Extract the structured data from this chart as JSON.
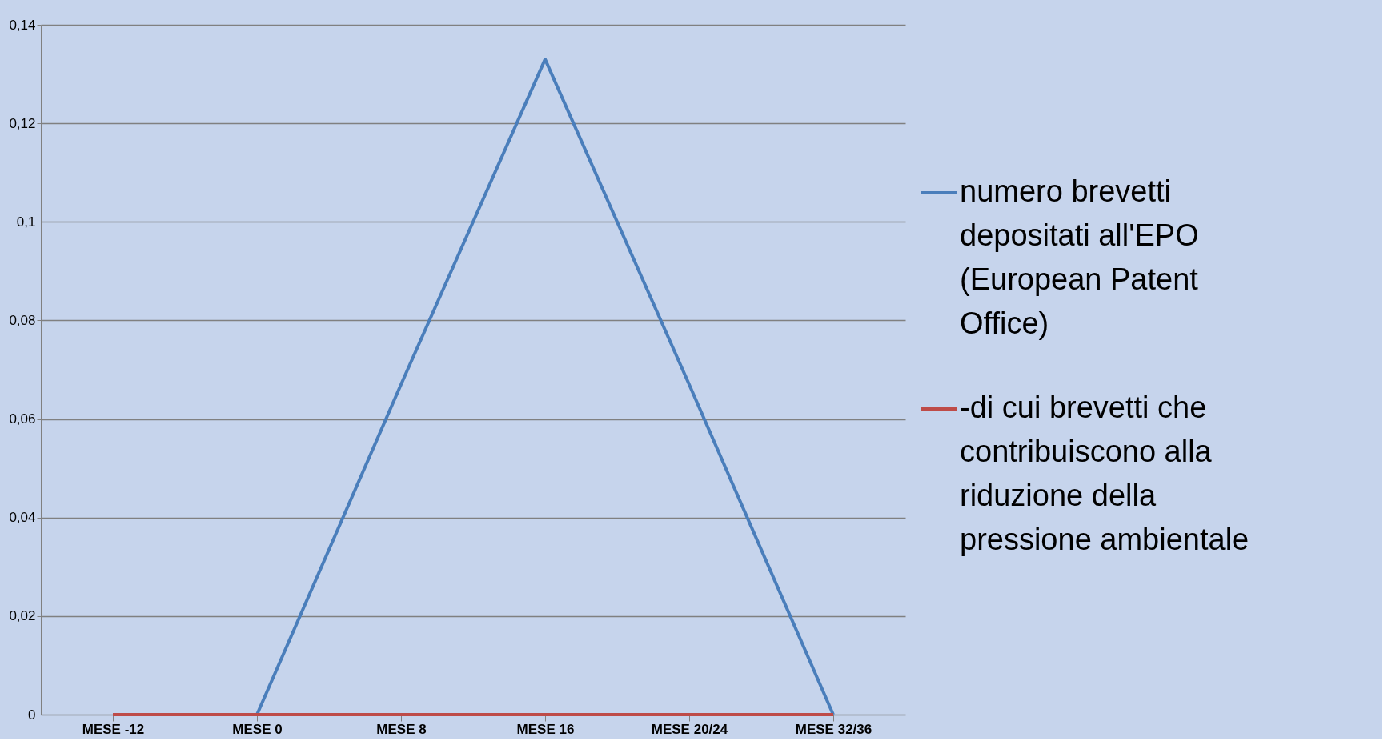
{
  "chart_data": {
    "type": "line",
    "categories": [
      "MESE -12",
      "MESE 0",
      "MESE 8",
      "MESE 16",
      "MESE 20/24",
      "MESE 32/36"
    ],
    "series": [
      {
        "name": "numero brevetti depositati all'EPO (European Patent Office)",
        "color": "#4a7ebb",
        "values": [
          null,
          0,
          0.067,
          0.133,
          0.067,
          0
        ]
      },
      {
        "name": "-di cui brevetti che contribuiscono alla riduzione della pressione ambientale",
        "color": "#be4b48",
        "values": [
          0,
          0,
          0,
          0,
          0,
          0
        ]
      }
    ],
    "ylim": [
      0,
      0.14
    ],
    "yticks": [
      0,
      {
        "value": 0.02,
        "label": "0,02"
      },
      {
        "value": 0.04,
        "label": "0,04"
      },
      {
        "value": 0.06,
        "label": "0,06"
      },
      {
        "value": 0.08,
        "label": "0,08"
      },
      {
        "value": 0.1,
        "label": "0,1"
      },
      {
        "value": 0.12,
        "label": "0,12"
      },
      {
        "value": 0.14,
        "label": "0,14"
      }
    ],
    "grid": "y",
    "legend": "right",
    "marker": "none",
    "line_style": "solid"
  }
}
